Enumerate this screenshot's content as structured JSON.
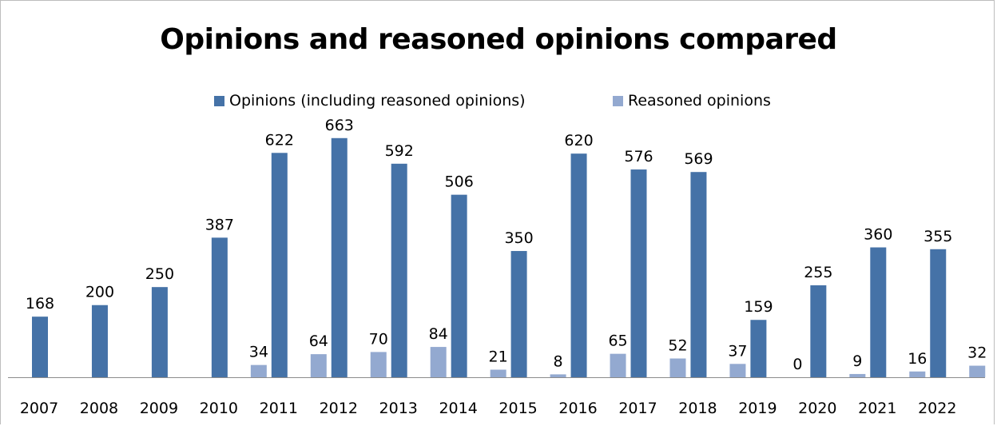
{
  "chart_data": {
    "type": "bar",
    "title": "Opinions and reasoned opinions compared",
    "xlabel": "",
    "ylabel": "",
    "ylim": [
      0,
      700
    ],
    "grid": false,
    "legend_position": "top",
    "categories": [
      "2007",
      "2008",
      "2009",
      "2010",
      "2011",
      "2012",
      "2013",
      "2014",
      "2015",
      "2016",
      "2017",
      "2018",
      "2019",
      "2020",
      "2021",
      "2022"
    ],
    "series": [
      {
        "name": "Opinions (including reasoned opinions)",
        "color": "#4572a7",
        "values": [
          168,
          200,
          250,
          387,
          622,
          663,
          592,
          506,
          350,
          620,
          576,
          569,
          159,
          255,
          360,
          355
        ],
        "labels": [
          "168",
          "200",
          "250",
          "387",
          "622",
          "663",
          "592",
          "506",
          "350",
          "620",
          "576",
          "569",
          "159",
          "255",
          "360",
          "355"
        ]
      },
      {
        "name": "Reasoned opinions",
        "color": "#93a9d0",
        "values": [
          null,
          null,
          null,
          34,
          64,
          70,
          84,
          21,
          8,
          65,
          52,
          37,
          0,
          9,
          16,
          32
        ],
        "labels": [
          "",
          "",
          "",
          "34",
          "64",
          "70",
          "84",
          "21",
          "8",
          "65",
          "52",
          "37",
          "0",
          "9",
          "16",
          "32"
        ]
      }
    ]
  }
}
